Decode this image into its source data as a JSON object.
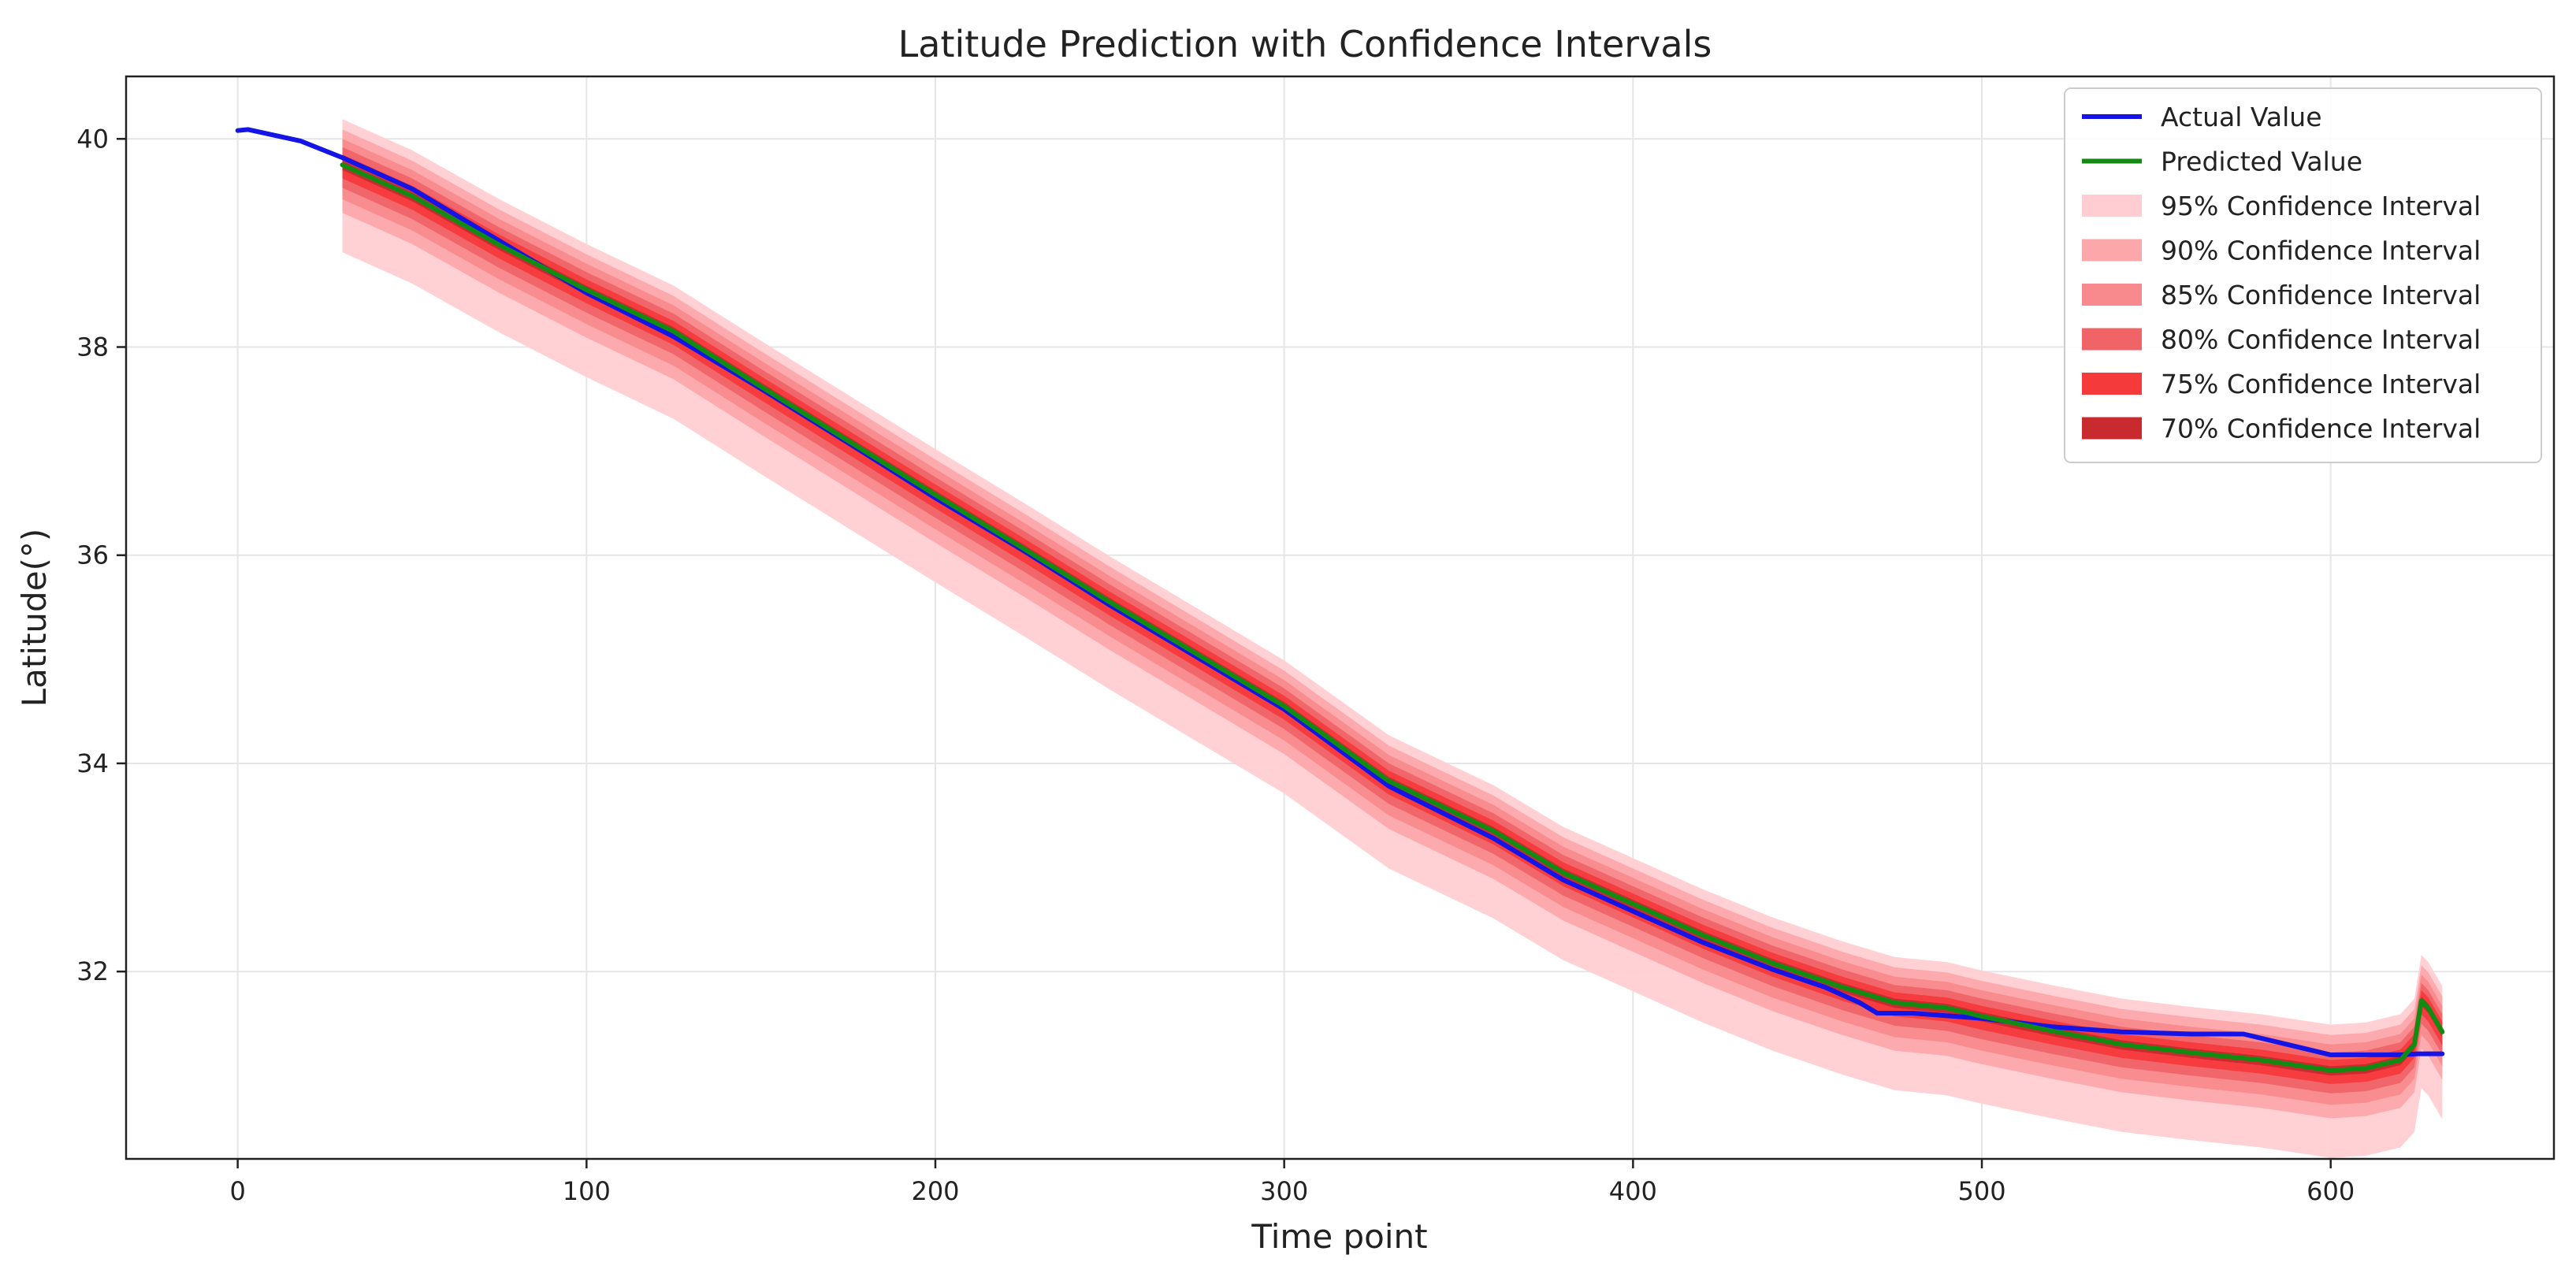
{
  "chart_data": {
    "type": "line",
    "title": "Latitude Prediction with Confidence Intervals",
    "xlabel": "Time point",
    "ylabel": "Latitude(°)",
    "xlim": [
      -32,
      664
    ],
    "ylim": [
      30.2,
      40.6
    ],
    "x_ticks": [
      0,
      100,
      200,
      300,
      400,
      500,
      600
    ],
    "y_ticks": [
      32,
      34,
      36,
      38,
      40
    ],
    "grid": true,
    "legend_position": "top-right",
    "colors": {
      "actual": "#1414e6",
      "predicted": "#138b13",
      "ci95": "#ffcdd2",
      "ci90": "#fca8ab",
      "ci85": "#f88a8d",
      "ci80": "#f06468",
      "ci75": "#f53a3c",
      "ci70": "#c82a2f"
    },
    "series": [
      {
        "name": "Actual Value",
        "x": [
          0,
          3,
          18,
          30,
          50,
          75,
          100,
          125,
          150,
          175,
          200,
          225,
          250,
          275,
          300,
          330,
          360,
          380,
          400,
          420,
          440,
          455,
          465,
          470,
          480,
          500,
          520,
          540,
          560,
          575,
          590,
          600,
          610,
          620,
          625,
          632
        ],
        "values": [
          40.08,
          40.09,
          39.98,
          39.82,
          39.52,
          39.02,
          38.52,
          38.1,
          37.6,
          37.08,
          36.55,
          36.05,
          35.52,
          35.02,
          34.52,
          33.78,
          33.28,
          32.88,
          32.58,
          32.28,
          32.02,
          31.85,
          31.7,
          31.6,
          31.6,
          31.55,
          31.47,
          31.42,
          31.4,
          31.4,
          31.28,
          31.2,
          31.2,
          31.2,
          31.21,
          31.21
        ]
      },
      {
        "name": "Predicted Value",
        "x": [
          30,
          50,
          75,
          100,
          125,
          150,
          175,
          200,
          225,
          250,
          275,
          300,
          330,
          360,
          380,
          400,
          420,
          440,
          460,
          475,
          490,
          500,
          520,
          540,
          560,
          580,
          600,
          610,
          620,
          624,
          626,
          628,
          632
        ],
        "values": [
          39.75,
          39.45,
          38.98,
          38.55,
          38.15,
          37.62,
          37.1,
          36.58,
          36.07,
          35.55,
          35.05,
          34.55,
          33.83,
          33.35,
          32.95,
          32.65,
          32.35,
          32.08,
          31.85,
          31.7,
          31.65,
          31.57,
          31.43,
          31.3,
          31.22,
          31.15,
          31.05,
          31.07,
          31.15,
          31.3,
          31.72,
          31.65,
          31.42
        ]
      }
    ],
    "confidence_intervals": [
      {
        "name": "95% Confidence Interval",
        "level": 95,
        "lower_offset": 0.38,
        "upper_offset": 0.1
      },
      {
        "name": "90% Confidence Interval",
        "level": 90,
        "lower_offset": 0.13,
        "upper_offset": 0.09
      },
      {
        "name": "85% Confidence Interval",
        "level": 85,
        "lower_offset": 0.11,
        "upper_offset": 0.08
      },
      {
        "name": "80% Confidence Interval",
        "level": 80,
        "lower_offset": 0.09,
        "upper_offset": 0.07
      },
      {
        "name": "75% Confidence Interval",
        "level": 75,
        "lower_offset": 0.08,
        "upper_offset": 0.06
      },
      {
        "name": "70% Confidence Interval",
        "level": 70,
        "lower_offset": 0.05,
        "upper_offset": 0.04
      }
    ],
    "legend": [
      {
        "label": "Actual Value",
        "kind": "line",
        "color_key": "actual"
      },
      {
        "label": "Predicted Value",
        "kind": "line",
        "color_key": "predicted"
      },
      {
        "label": "95% Confidence Interval",
        "kind": "patch",
        "color_key": "ci95"
      },
      {
        "label": "90% Confidence Interval",
        "kind": "patch",
        "color_key": "ci90"
      },
      {
        "label": "85% Confidence Interval",
        "kind": "patch",
        "color_key": "ci85"
      },
      {
        "label": "80% Confidence Interval",
        "kind": "patch",
        "color_key": "ci80"
      },
      {
        "label": "75% Confidence Interval",
        "kind": "patch",
        "color_key": "ci75"
      },
      {
        "label": "70% Confidence Interval",
        "kind": "patch",
        "color_key": "ci70"
      }
    ]
  }
}
